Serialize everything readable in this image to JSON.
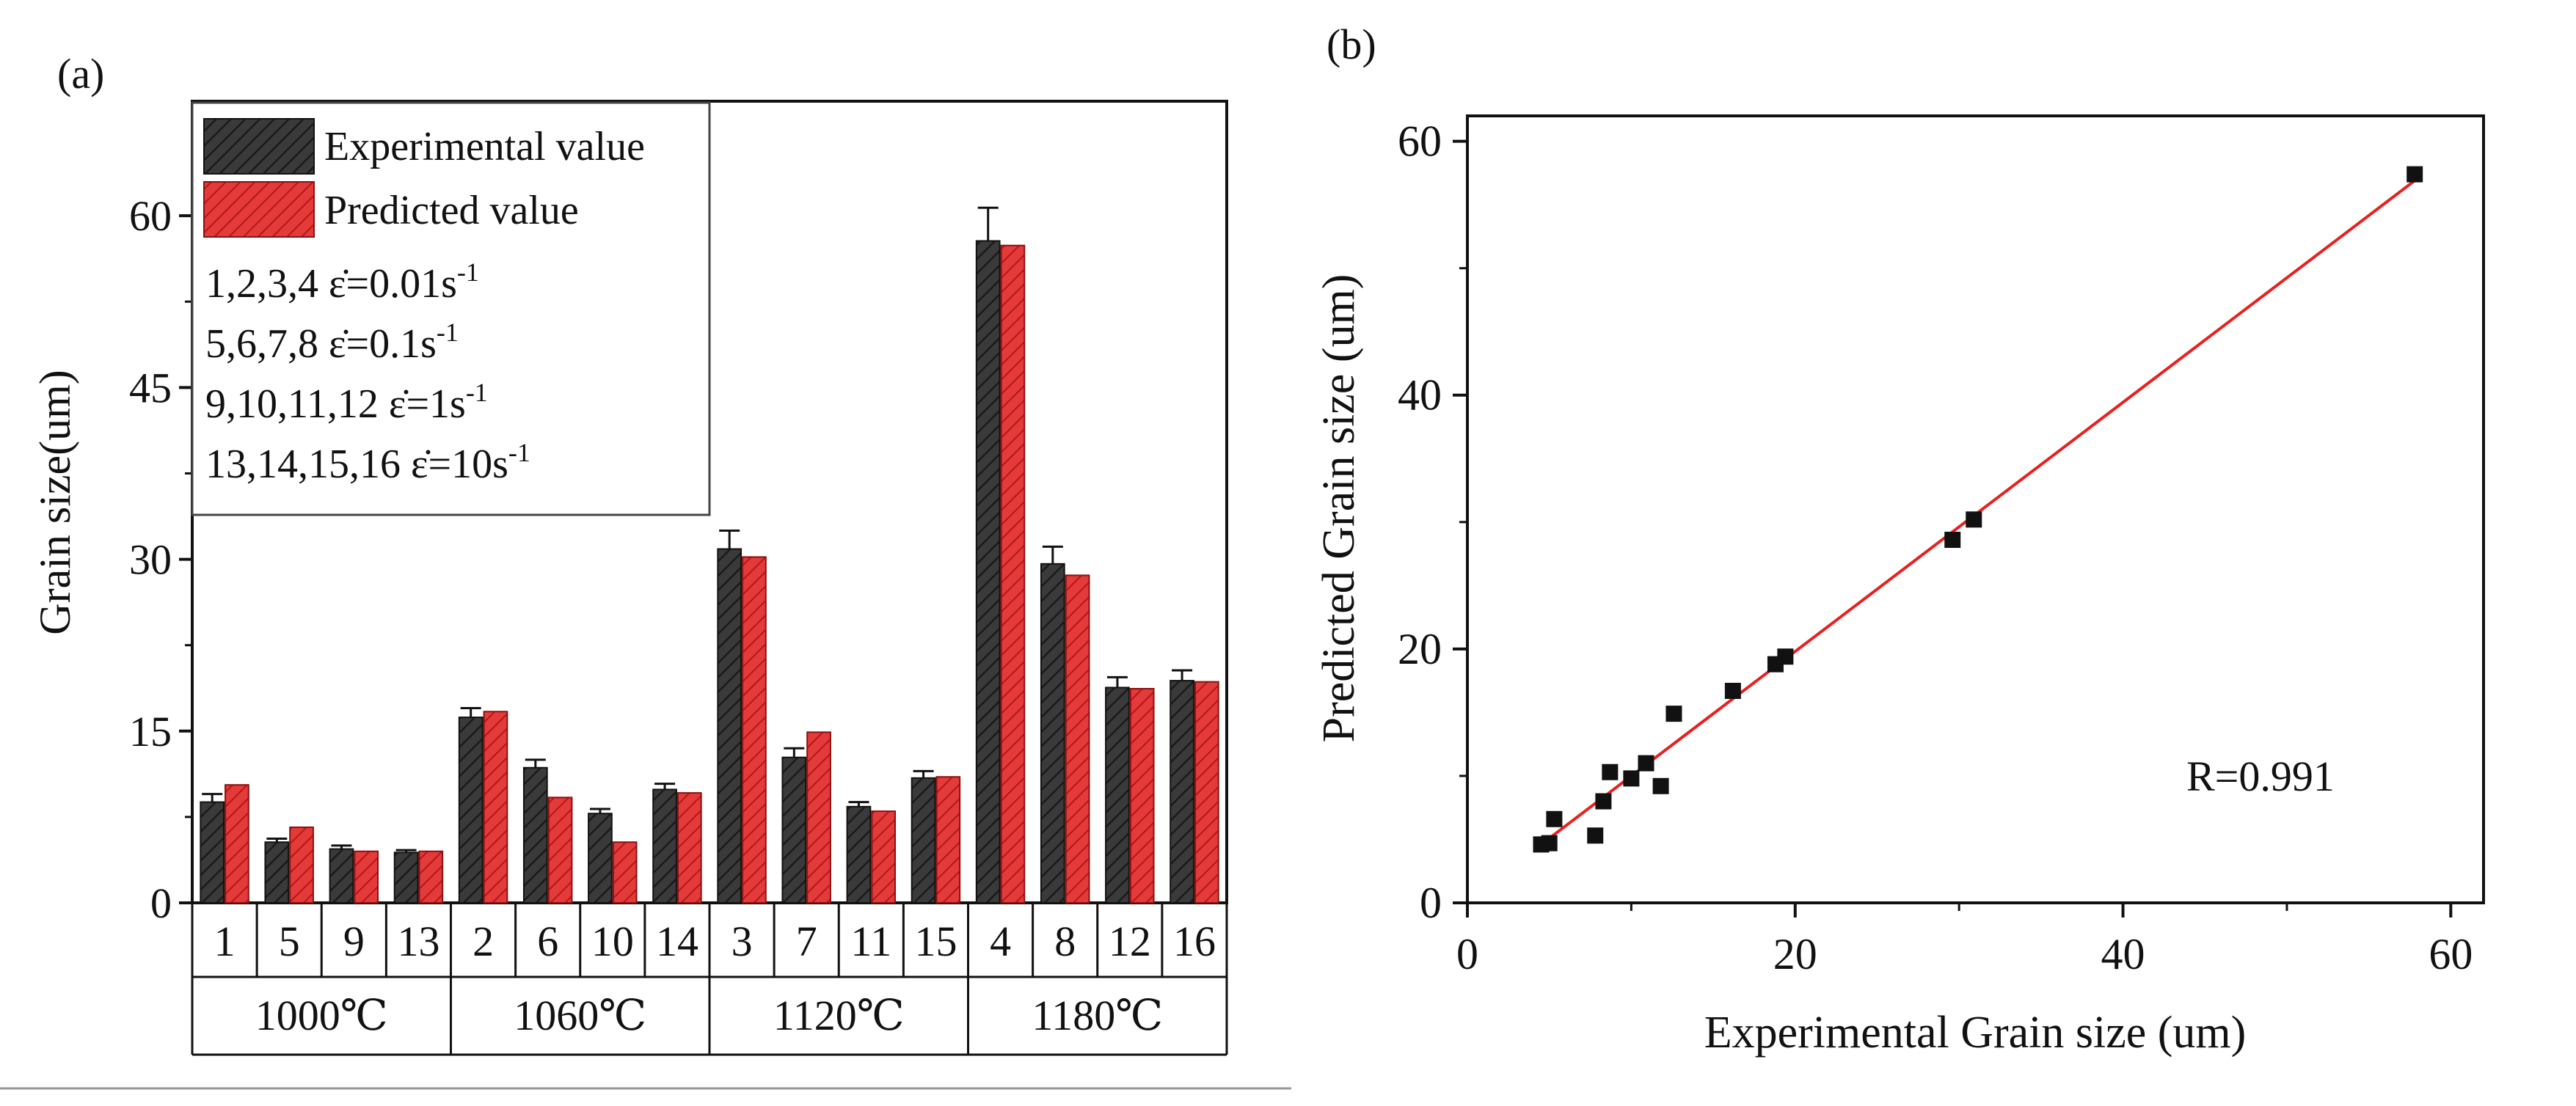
{
  "panel_a": {
    "label": "(a)",
    "legend": {
      "experimental": "Experimental value",
      "predicted": "Predicted value",
      "rates": [
        {
          "text": "1,2,3,4 ε̇=0.01s",
          "sup": "-1"
        },
        {
          "text": "5,6,7,8 ε̇=0.1s",
          "sup": "-1"
        },
        {
          "text": "9,10,11,12 ε̇=1s",
          "sup": "-1"
        },
        {
          "text": "13,14,15,16 ε̇=10s",
          "sup": "-1"
        }
      ]
    }
  },
  "panel_b": {
    "label": "(b)",
    "annotation": "R=0.991"
  },
  "colors": {
    "experimental": "#3a3a3a",
    "predicted": "#e53a3a",
    "fit_line": "#e8201e",
    "points": "#111111"
  },
  "chart_data": [
    {
      "type": "bar",
      "title": "(a)",
      "ylabel": "Grain size(um)",
      "ylim": [
        0,
        70
      ],
      "yticks": [
        0,
        15,
        30,
        45,
        60
      ],
      "categories": [
        "1",
        "5",
        "9",
        "13",
        "2",
        "6",
        "10",
        "14",
        "3",
        "7",
        "11",
        "15",
        "4",
        "8",
        "12",
        "16"
      ],
      "groups": [
        {
          "label": "1000℃",
          "span": 4
        },
        {
          "label": "1060℃",
          "span": 4
        },
        {
          "label": "1120℃",
          "span": 4
        },
        {
          "label": "1180℃",
          "span": 4
        }
      ],
      "series": [
        {
          "name": "Experimental value",
          "values": [
            8.8,
            5.3,
            4.7,
            4.4,
            16.2,
            11.8,
            7.8,
            9.9,
            30.9,
            12.7,
            8.4,
            10.9,
            57.8,
            29.6,
            18.8,
            19.4
          ],
          "errors": [
            0.7,
            0.3,
            0.3,
            0.2,
            0.8,
            0.7,
            0.4,
            0.5,
            1.6,
            0.8,
            0.4,
            0.6,
            2.9,
            1.5,
            0.9,
            0.9
          ]
        },
        {
          "name": "Predicted value",
          "values": [
            10.3,
            6.6,
            4.5,
            4.5,
            16.7,
            9.2,
            5.3,
            9.6,
            30.2,
            14.9,
            8.0,
            11.0,
            57.4,
            28.6,
            18.7,
            19.3
          ]
        }
      ]
    },
    {
      "type": "scatter",
      "title": "(b)",
      "xlabel": "Experimental Grain size (um)",
      "ylabel": "Predicted Grain size (um)",
      "xlim": [
        0,
        62
      ],
      "ylim": [
        0,
        62
      ],
      "xticks": [
        0,
        20,
        40,
        60
      ],
      "yticks": [
        0,
        20,
        40,
        60
      ],
      "points": [
        [
          4.5,
          4.6
        ],
        [
          5.0,
          4.7
        ],
        [
          5.3,
          6.6
        ],
        [
          7.8,
          5.3
        ],
        [
          8.3,
          8.0
        ],
        [
          8.7,
          10.3
        ],
        [
          10.0,
          9.8
        ],
        [
          10.9,
          11.0
        ],
        [
          11.8,
          9.2
        ],
        [
          12.6,
          14.9
        ],
        [
          16.2,
          16.7
        ],
        [
          18.8,
          18.8
        ],
        [
          19.4,
          19.4
        ],
        [
          29.6,
          28.6
        ],
        [
          30.9,
          30.2
        ],
        [
          57.8,
          57.4
        ]
      ],
      "fit": {
        "x": [
          4.3,
          57.8
        ],
        "y": [
          4.4,
          56.9
        ]
      },
      "annotation": "R=0.991"
    }
  ]
}
